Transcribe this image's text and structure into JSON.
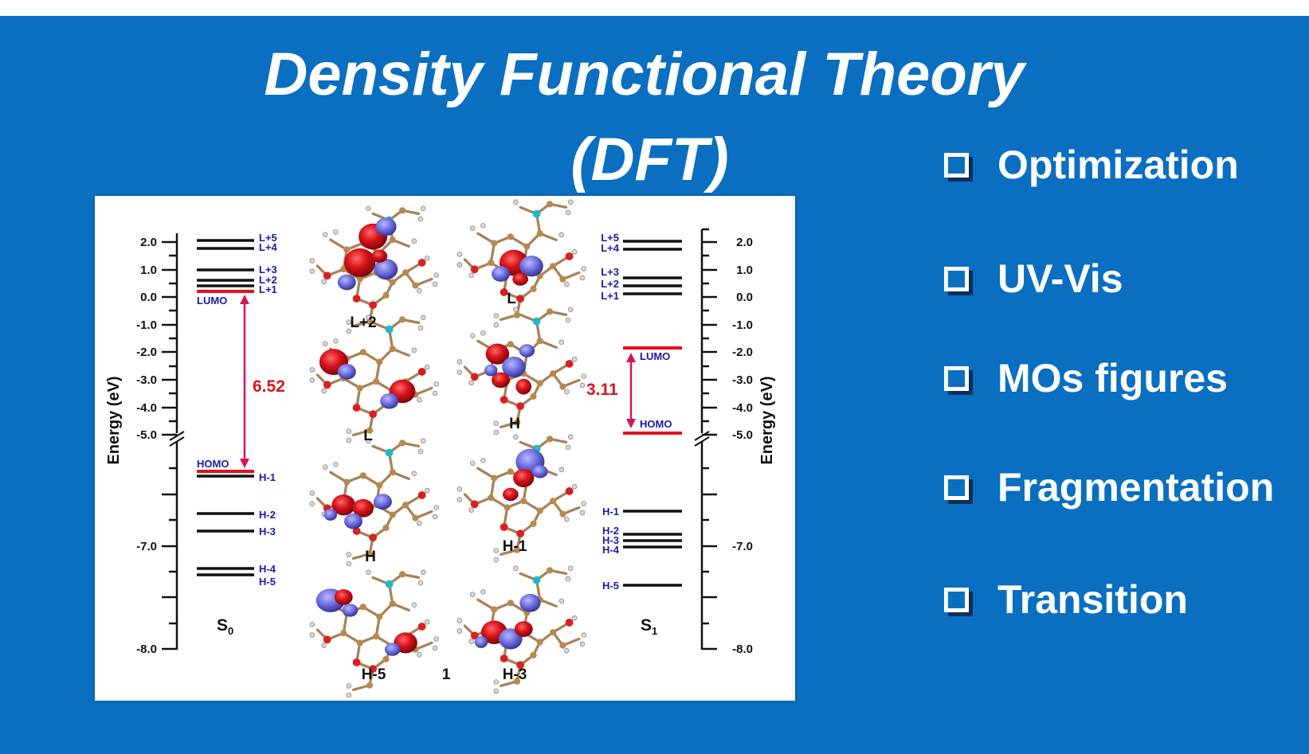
{
  "slide": {
    "title_line1": "Density Functional Theory",
    "title_line2": "(DFT)",
    "background_color": "#0a6fc0",
    "checklist": [
      {
        "label": "Optimization"
      },
      {
        "label": "UV-Vis"
      },
      {
        "label": "MOs figures"
      },
      {
        "label": "Fragmentation"
      },
      {
        "label": "Transition"
      }
    ]
  },
  "figure": {
    "axis_label": "Energy (eV)",
    "y_ticks_upper": [
      "2.0",
      "1.0",
      "0.0",
      "-1.0",
      "-2.0",
      "-3.0",
      "-4.0",
      "-5.0"
    ],
    "y_ticks_lower": [
      "-7.0",
      "-8.0"
    ],
    "compound_label": "1",
    "state_s0": "S",
    "state_s0_sub": "0",
    "state_s1": "S",
    "state_s1_sub": "1",
    "gap_s0": "6.52",
    "gap_s1": "3.11",
    "colors": {
      "homo_lumo": "#e8101a",
      "level": "#111111",
      "label": "#1a1aa8",
      "gap": "#d4145a",
      "gap_text": "#d8151d"
    },
    "s0_levels": {
      "L+5": "L+5",
      "L+4": "L+4",
      "L+3": "L+3",
      "L+2": "L+2",
      "L+1": "L+1",
      "LUMO": "LUMO",
      "HOMO": "HOMO",
      "H-1": "H-1",
      "H-2": "H-2",
      "H-3": "H-3",
      "H-4": "H-4",
      "H-5": "H-5"
    },
    "s1_levels": {
      "L+5": "L+5",
      "L+4": "L+4",
      "L+3": "L+3",
      "L+2": "L+2",
      "L+1": "L+1",
      "LUMO": "LUMO",
      "HOMO": "HOMO",
      "H-1": "H-1",
      "H-2": "H-2",
      "H-3": "H-3",
      "H-4": "H-4",
      "H-5": "H-5"
    },
    "orbital_labels": [
      "L+2",
      "L",
      "L",
      "H",
      "H",
      "H-1",
      "H-5",
      "H-3"
    ]
  }
}
